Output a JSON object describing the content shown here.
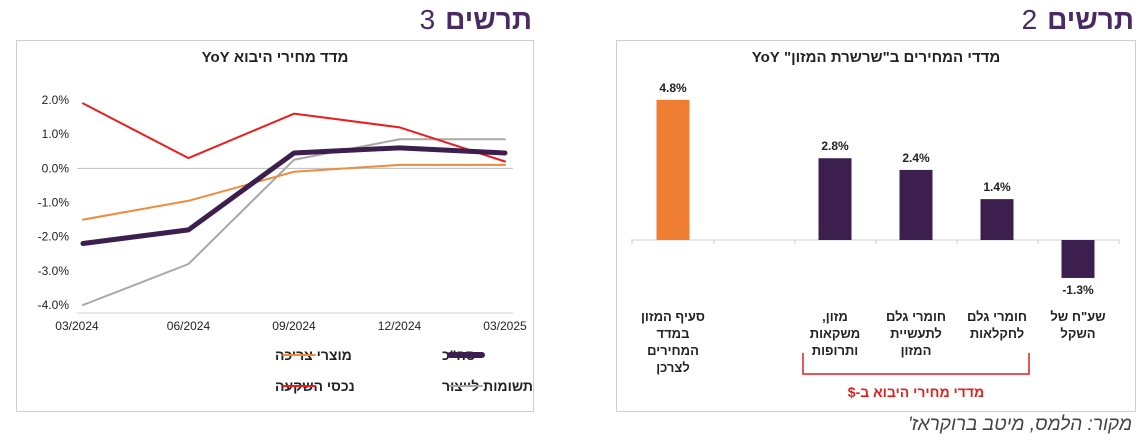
{
  "source": "מקור: הלמס, מיטב ברוקראז'",
  "figures": {
    "fig3": {
      "label": "תרשים",
      "number": "3"
    },
    "fig2": {
      "label": "תרשים",
      "number": "2"
    }
  },
  "chart_data": [
    {
      "type": "line",
      "title": "מדד מחירי היבוא YoY",
      "categories": [
        "03/2024",
        "06/2024",
        "09/2024",
        "12/2024",
        "03/2025"
      ],
      "ylim": [
        -4,
        2
      ],
      "yticks": [
        2,
        1,
        0,
        -1,
        -2,
        -3,
        -4
      ],
      "yticklabels": [
        "2.0%",
        "1.0%",
        "0.0%",
        "-1.0%",
        "-2.0%",
        "-3.0%",
        "-4.0%"
      ],
      "series": [
        {
          "name": "סה\"כ",
          "color": "#3d1f4f",
          "values": [
            -2.2,
            -1.8,
            0.45,
            0.6,
            0.45
          ]
        },
        {
          "name": "מוצרי צריכה",
          "color": "#f08a3c",
          "values": [
            -1.5,
            -0.95,
            -0.1,
            0.1,
            0.1
          ]
        },
        {
          "name": "תשומות לייצור",
          "color": "#a8a8a8",
          "values": [
            -4.0,
            -2.8,
            0.25,
            0.85,
            0.85
          ]
        },
        {
          "name": "נכסי השקעה",
          "color": "#ee1c1c",
          "values": [
            1.9,
            0.3,
            1.6,
            1.2,
            0.2
          ]
        }
      ],
      "legend_position": "bottom"
    },
    {
      "type": "bar",
      "title": "מדדי המחירים ב\"שרשרת המזון\" YoY",
      "categories": [
        "סעיף המזון במדד המחירים לצרכן",
        "",
        "מזון, משקאות ותרופות",
        "חומרי גלם לתעשיית המזון",
        "חומרי גלם לחקלאות",
        "שע\"ח של השקל"
      ],
      "values": [
        4.8,
        null,
        2.8,
        2.4,
        1.4,
        -1.3
      ],
      "value_labels": [
        "4.8%",
        "",
        "2.8%",
        "2.4%",
        "1.4%",
        "-1.3%"
      ],
      "colors": [
        "#ef7d32",
        "",
        "#3d1f4f",
        "#3d1f4f",
        "#3d1f4f",
        "#3d1f4f"
      ],
      "bracket_label": "מדדי מחירי היבוא ב-$"
    }
  ]
}
